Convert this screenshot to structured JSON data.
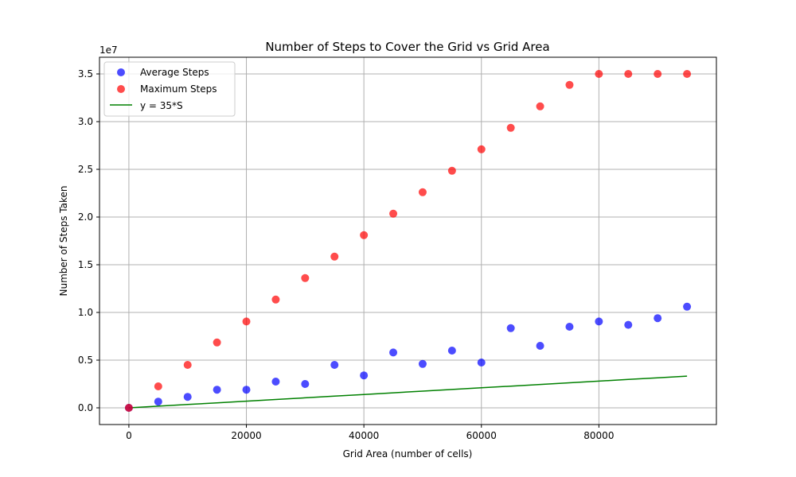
{
  "chart_data": {
    "type": "scatter",
    "title": "Number of Steps to Cover the Grid vs Grid Area",
    "xlabel": "Grid Area (number of cells)",
    "ylabel": "Number of Steps Taken",
    "y_offset_label": "1e7",
    "xlim": [
      -5000,
      100000
    ],
    "ylim": [
      -1750000,
      36750000
    ],
    "x_ticks": [
      0,
      20000,
      40000,
      60000,
      80000
    ],
    "y_ticks": [
      0,
      5000000,
      10000000,
      15000000,
      20000000,
      25000000,
      30000000,
      35000000
    ],
    "y_tick_labels": [
      "0.0",
      "0.5",
      "1.0",
      "1.5",
      "2.0",
      "2.5",
      "3.0",
      "3.5"
    ],
    "grid": true,
    "legend_position": "top-left",
    "x": [
      0,
      5000,
      10000,
      15000,
      20000,
      25000,
      30000,
      35000,
      40000,
      45000,
      50000,
      55000,
      60000,
      65000,
      70000,
      75000,
      80000,
      85000,
      90000,
      95000
    ],
    "series": [
      {
        "name": "Average Steps",
        "kind": "scatter",
        "color": "#0000ff",
        "values": [
          0,
          650000,
          1150000,
          1900000,
          1900000,
          2750000,
          2500000,
          4500000,
          3400000,
          5800000,
          4600000,
          6000000,
          4750000,
          8350000,
          6500000,
          8500000,
          9050000,
          8700000,
          9400000,
          10600000
        ]
      },
      {
        "name": "Maximum Steps",
        "kind": "scatter",
        "color": "#ff0000",
        "values": [
          0,
          2250000,
          4500000,
          6850000,
          9050000,
          11350000,
          13600000,
          15850000,
          18100000,
          20350000,
          22600000,
          24850000,
          27100000,
          29350000,
          31600000,
          33850000,
          35000000,
          35000000,
          35000000,
          35000000
        ]
      },
      {
        "name": "y = 35*S",
        "kind": "line",
        "color": "#008000",
        "values": [
          0,
          175000,
          350000,
          525000,
          700000,
          875000,
          1050000,
          1225000,
          1400000,
          1575000,
          1750000,
          1925000,
          2100000,
          2275000,
          2450000,
          2625000,
          2800000,
          2975000,
          3150000,
          3325000
        ]
      }
    ]
  }
}
